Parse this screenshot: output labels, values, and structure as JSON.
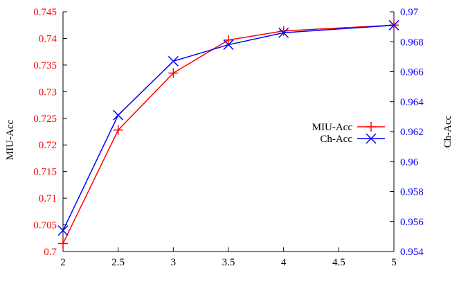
{
  "chart_data": {
    "type": "line",
    "title": "",
    "xlabel": "",
    "ylabel": "MIU-Acc",
    "y2label": "Ch-Acc",
    "x": [
      2,
      2.5,
      3,
      3.5,
      4,
      5
    ],
    "xlim": [
      2,
      5
    ],
    "xticks": [
      "2",
      "2.5",
      "3",
      "3.5",
      "4",
      "4.5",
      "5"
    ],
    "ylim": [
      0.7,
      0.745
    ],
    "yticks": [
      "0.7",
      "0.705",
      "0.71",
      "0.715",
      "0.72",
      "0.725",
      "0.73",
      "0.735",
      "0.74",
      "0.745"
    ],
    "y2lim": [
      0.954,
      0.97
    ],
    "y2ticks": [
      "0.954",
      "0.956",
      "0.958",
      "0.96",
      "0.962",
      "0.964",
      "0.966",
      "0.968",
      "0.97"
    ],
    "grid": false,
    "legend_position": "right",
    "series": [
      {
        "name": "MIU-Acc",
        "axis": "left",
        "marker": "plus",
        "color": "#ff0000",
        "values": [
          0.7015,
          0.7228,
          0.7335,
          0.7397,
          0.7414,
          0.7425
        ]
      },
      {
        "name": "Ch-Acc",
        "axis": "right",
        "marker": "x",
        "color": "#0000ff",
        "values": [
          0.9554,
          0.9631,
          0.9667,
          0.9678,
          0.9686,
          0.9691
        ]
      }
    ],
    "left_axis_color": "#ff0000",
    "right_axis_color": "#0000ff"
  }
}
